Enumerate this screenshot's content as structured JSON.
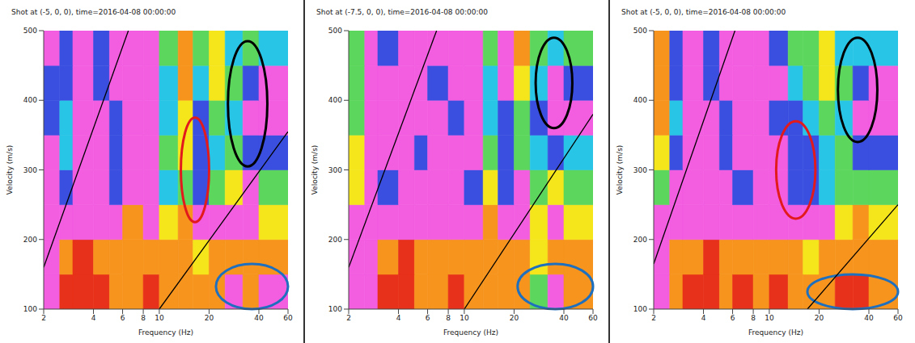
{
  "chart_data": [
    {
      "type": "heatmap",
      "title": "Shot at (-5, 0, 0), time=2016-04-08 00:00:00",
      "x_label": "Frequency (Hz)",
      "y_label": "Velocity (m/s)",
      "log": "x",
      "xlim": [
        2,
        60
      ],
      "xticks": [
        2,
        4,
        6,
        8,
        10,
        20,
        40,
        60
      ],
      "ylim": [
        100,
        500
      ],
      "yticks": [
        100,
        200,
        300,
        400,
        500
      ],
      "grid": false,
      "heatmap": {
        "colors": [
          "#e8311a",
          "#f7941d",
          "#f5e51b",
          "#5cd65c",
          "#29c5e6",
          "#3a4fe0",
          "#f35de0"
        ],
        "x_edges": [
          2,
          2.5,
          3,
          4,
          5,
          6,
          8,
          10,
          13,
          16,
          20,
          25,
          32,
          40,
          60
        ],
        "y_edges": [
          100,
          150,
          200,
          250,
          300,
          350,
          400,
          450,
          500
        ],
        "cells": [
          [
            6,
            0,
            0,
            0,
            1,
            1,
            0,
            1,
            1,
            1,
            1,
            6,
            1,
            6
          ],
          [
            6,
            1,
            0,
            1,
            1,
            1,
            1,
            1,
            1,
            2,
            1,
            1,
            1,
            1
          ],
          [
            6,
            6,
            6,
            6,
            6,
            1,
            6,
            2,
            1,
            6,
            6,
            6,
            6,
            2
          ],
          [
            6,
            5,
            6,
            6,
            5,
            6,
            6,
            4,
            3,
            5,
            3,
            2,
            6,
            3
          ],
          [
            6,
            4,
            6,
            6,
            5,
            6,
            6,
            3,
            2,
            5,
            4,
            3,
            5,
            5
          ],
          [
            5,
            4,
            6,
            6,
            5,
            6,
            6,
            4,
            2,
            5,
            3,
            4,
            6,
            6
          ],
          [
            5,
            5,
            6,
            5,
            6,
            6,
            6,
            4,
            1,
            4,
            2,
            3,
            5,
            6
          ],
          [
            6,
            5,
            6,
            5,
            6,
            6,
            6,
            3,
            1,
            3,
            2,
            4,
            3,
            4
          ]
        ]
      },
      "series": [
        {
          "type": "line",
          "color": "#000000",
          "x": [
            2,
            6.5
          ],
          "values": [
            160,
            500
          ]
        },
        {
          "type": "line",
          "color": "#000000",
          "x": [
            10,
            60
          ],
          "values": [
            100,
            355
          ]
        }
      ],
      "ellipses": [
        {
          "color": "#e31a1c",
          "x": [
            13.5,
            20
          ],
          "y": [
            225,
            375
          ]
        },
        {
          "color": "#000000",
          "x": [
            26,
            45
          ],
          "y": [
            305,
            485
          ]
        },
        {
          "color": "#1f6fbf",
          "x": [
            22,
            60
          ],
          "y": [
            100,
            165
          ]
        }
      ]
    },
    {
      "type": "heatmap",
      "title": "Shot at (-7.5, 0, 0), time=2016-04-08 00:00:00",
      "x_label": "Frequency (Hz)",
      "y_label": "Velocity (m/s)",
      "log": "x",
      "xlim": [
        2,
        60
      ],
      "xticks": [
        2,
        4,
        6,
        8,
        10,
        20,
        40,
        60
      ],
      "ylim": [
        100,
        500
      ],
      "yticks": [
        100,
        200,
        300,
        400,
        500
      ],
      "grid": false,
      "heatmap": {
        "colors": [
          "#e8311a",
          "#f7941d",
          "#f5e51b",
          "#5cd65c",
          "#29c5e6",
          "#3a4fe0",
          "#f35de0"
        ],
        "x_edges": [
          2,
          2.5,
          3,
          4,
          5,
          6,
          8,
          10,
          13,
          16,
          20,
          25,
          32,
          40,
          60
        ],
        "y_edges": [
          100,
          150,
          200,
          250,
          300,
          350,
          400,
          450,
          500
        ],
        "cells": [
          [
            6,
            6,
            0,
            0,
            1,
            1,
            0,
            1,
            1,
            1,
            1,
            3,
            6,
            1
          ],
          [
            6,
            6,
            1,
            0,
            1,
            1,
            1,
            1,
            1,
            1,
            1,
            2,
            1,
            1
          ],
          [
            6,
            6,
            6,
            6,
            6,
            6,
            6,
            6,
            1,
            6,
            6,
            2,
            6,
            2
          ],
          [
            2,
            6,
            5,
            6,
            6,
            6,
            6,
            5,
            2,
            5,
            6,
            3,
            2,
            3
          ],
          [
            2,
            6,
            6,
            6,
            5,
            6,
            6,
            6,
            3,
            5,
            3,
            4,
            5,
            4
          ],
          [
            3,
            6,
            6,
            6,
            6,
            6,
            5,
            6,
            4,
            5,
            3,
            5,
            6,
            6
          ],
          [
            3,
            6,
            6,
            6,
            6,
            5,
            6,
            6,
            4,
            6,
            2,
            4,
            6,
            5
          ],
          [
            3,
            6,
            5,
            6,
            6,
            6,
            6,
            6,
            3,
            6,
            1,
            3,
            4,
            3
          ]
        ]
      },
      "series": [
        {
          "type": "line",
          "color": "#000000",
          "x": [
            2,
            6.8
          ],
          "values": [
            160,
            500
          ]
        },
        {
          "type": "line",
          "color": "#000000",
          "x": [
            10,
            60
          ],
          "values": [
            100,
            380
          ]
        }
      ],
      "ellipses": [
        {
          "color": "#000000",
          "x": [
            27,
            45
          ],
          "y": [
            360,
            490
          ]
        },
        {
          "color": "#1f6fbf",
          "x": [
            21,
            60
          ],
          "y": [
            100,
            165
          ]
        }
      ]
    },
    {
      "type": "heatmap",
      "title": "Shot at (-5, 0, 0), time=2016-04-08 00:00:00",
      "x_label": "Frequency (Hz)",
      "y_label": "Velocity (m/s)",
      "log": "x",
      "xlim": [
        2,
        60
      ],
      "xticks": [
        2,
        4,
        6,
        8,
        10,
        20,
        40,
        60
      ],
      "ylim": [
        100,
        500
      ],
      "yticks": [
        100,
        200,
        300,
        400,
        500
      ],
      "grid": false,
      "heatmap": {
        "colors": [
          "#e8311a",
          "#f7941d",
          "#f5e51b",
          "#5cd65c",
          "#29c5e6",
          "#3a4fe0",
          "#f35de0"
        ],
        "x_edges": [
          2,
          2.5,
          3,
          4,
          5,
          6,
          8,
          10,
          13,
          16,
          20,
          25,
          32,
          40,
          60
        ],
        "y_edges": [
          100,
          150,
          200,
          250,
          300,
          350,
          400,
          450,
          500
        ],
        "cells": [
          [
            6,
            1,
            0,
            0,
            1,
            0,
            1,
            0,
            1,
            1,
            1,
            0,
            0,
            1
          ],
          [
            6,
            1,
            1,
            0,
            1,
            1,
            1,
            1,
            1,
            2,
            1,
            1,
            1,
            1
          ],
          [
            6,
            6,
            6,
            6,
            6,
            6,
            6,
            6,
            6,
            6,
            6,
            2,
            1,
            2
          ],
          [
            3,
            6,
            6,
            6,
            6,
            5,
            6,
            6,
            5,
            5,
            4,
            3,
            3,
            3
          ],
          [
            2,
            5,
            6,
            6,
            5,
            6,
            6,
            6,
            5,
            5,
            4,
            3,
            5,
            5
          ],
          [
            1,
            4,
            6,
            6,
            5,
            6,
            6,
            5,
            5,
            4,
            3,
            4,
            6,
            6
          ],
          [
            1,
            5,
            6,
            5,
            6,
            6,
            6,
            6,
            4,
            3,
            2,
            3,
            5,
            6
          ],
          [
            1,
            5,
            6,
            5,
            6,
            6,
            6,
            5,
            3,
            3,
            2,
            4,
            4,
            4
          ]
        ]
      },
      "series": [
        {
          "type": "line",
          "color": "#000000",
          "x": [
            2,
            6.2
          ],
          "values": [
            165,
            500
          ]
        },
        {
          "type": "line",
          "color": "#000000",
          "x": [
            17,
            60
          ],
          "values": [
            100,
            250
          ]
        }
      ],
      "ellipses": [
        {
          "color": "#e31a1c",
          "x": [
            11,
            19
          ],
          "y": [
            230,
            370
          ]
        },
        {
          "color": "#000000",
          "x": [
            26,
            45
          ],
          "y": [
            340,
            490
          ]
        },
        {
          "color": "#1f6fbf",
          "x": [
            17,
            60
          ],
          "y": [
            100,
            150
          ]
        }
      ]
    }
  ]
}
